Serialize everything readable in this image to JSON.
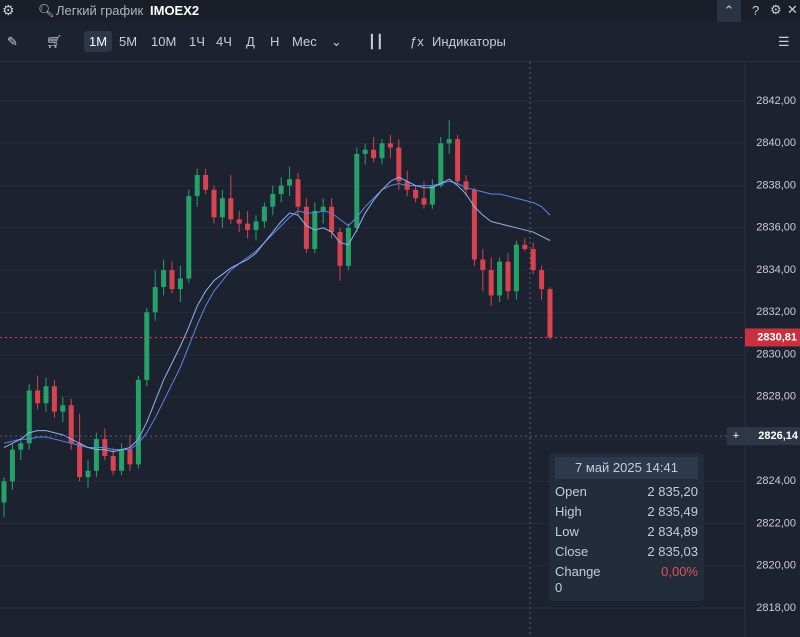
{
  "header": {
    "title": "Легкий график",
    "symbol": "IMOEX2"
  },
  "toolbar": {
    "intervals": [
      "1М",
      "5М",
      "10М",
      "1Ч",
      "4Ч",
      "Д",
      "Н",
      "Мес"
    ],
    "indicators": "Индикаторы"
  },
  "chart_data": {
    "type": "candlestick",
    "up_color": "#26a269",
    "down_color": "#d9434f",
    "open": [
      2823.0,
      2824.0,
      2825.5,
      2825.8,
      2828.3,
      2827.7,
      2828.5,
      2827.3,
      2827.6,
      2825.8,
      2824.2,
      2824.5,
      2826.0,
      2825.2,
      2824.5,
      2825.5,
      2824.8,
      2828.8,
      2832.0,
      2833.2,
      2834.0,
      2833.1,
      2833.6,
      2837.5,
      2838.5,
      2837.8,
      2836.5,
      2837.4,
      2836.4,
      2836.2,
      2835.9,
      2836.3,
      2837.0,
      2837.6,
      2838.0,
      2838.3,
      2837.0,
      2835.0,
      2836.8,
      2837.0,
      2835.8,
      2834.2,
      2836.0,
      2839.5,
      2839.7,
      2839.3,
      2840.0,
      2839.8,
      2838.2,
      2837.8,
      2837.4,
      2837.1,
      2838.0,
      2840.0,
      2840.2,
      2838.2,
      2837.8,
      2834.5,
      2834.0,
      2832.8,
      2834.4,
      2833.0,
      2835.2,
      2835.0,
      2834.0,
      2833.1
    ],
    "high": [
      2824.2,
      2825.8,
      2826.0,
      2828.6,
      2829.0,
      2828.9,
      2828.8,
      2828.0,
      2827.9,
      2827.2,
      2825.0,
      2826.3,
      2826.5,
      2825.6,
      2825.8,
      2826.2,
      2829.0,
      2832.2,
      2834.0,
      2834.5,
      2834.4,
      2834.2,
      2837.8,
      2838.8,
      2838.8,
      2838.0,
      2837.8,
      2838.5,
      2836.8,
      2836.8,
      2836.6,
      2837.2,
      2838.0,
      2838.4,
      2838.9,
      2838.6,
      2837.4,
      2837.2,
      2837.4,
      2837.4,
      2836.0,
      2836.2,
      2839.8,
      2840.0,
      2840.3,
      2840.2,
      2840.4,
      2840.2,
      2838.7,
      2838.0,
      2838.2,
      2838.3,
      2840.3,
      2841.1,
      2840.4,
      2838.5,
      2837.9,
      2835.0,
      2834.6,
      2834.6,
      2834.8,
      2835.4,
      2835.5,
      2835.3,
      2834.2,
      2833.2
    ],
    "low": [
      2822.3,
      2823.6,
      2825.0,
      2825.5,
      2827.4,
      2827.3,
      2827.0,
      2826.8,
      2825.5,
      2824.0,
      2823.7,
      2824.2,
      2825.0,
      2824.3,
      2824.3,
      2824.5,
      2824.6,
      2828.5,
      2831.6,
      2832.8,
      2832.9,
      2832.5,
      2833.4,
      2837.0,
      2837.6,
      2836.2,
      2836.0,
      2836.2,
      2835.8,
      2835.5,
      2835.4,
      2836.0,
      2836.6,
      2837.2,
      2837.5,
      2836.6,
      2834.8,
      2834.8,
      2836.2,
      2835.5,
      2833.5,
      2834.0,
      2835.8,
      2839.0,
      2839.1,
      2839.0,
      2839.3,
      2837.8,
      2837.5,
      2837.2,
      2836.9,
      2836.9,
      2837.9,
      2839.5,
      2838.0,
      2837.5,
      2834.2,
      2833.0,
      2832.3,
      2832.5,
      2832.6,
      2832.6,
      2834.9,
      2833.8,
      2832.6,
      2830.7
    ],
    "close": [
      2824.0,
      2825.5,
      2825.8,
      2828.3,
      2827.7,
      2828.5,
      2827.3,
      2827.6,
      2825.8,
      2824.2,
      2824.5,
      2826.0,
      2825.2,
      2824.5,
      2825.5,
      2824.8,
      2828.8,
      2832.0,
      2833.2,
      2834.0,
      2833.1,
      2833.6,
      2837.5,
      2838.5,
      2837.8,
      2836.5,
      2837.4,
      2836.4,
      2836.2,
      2835.9,
      2836.3,
      2837.0,
      2837.6,
      2838.0,
      2838.3,
      2837.0,
      2835.0,
      2836.8,
      2837.0,
      2835.8,
      2834.2,
      2836.0,
      2839.5,
      2839.7,
      2839.3,
      2840.0,
      2839.8,
      2838.2,
      2837.8,
      2837.4,
      2837.1,
      2838.0,
      2840.0,
      2840.2,
      2838.2,
      2837.8,
      2834.5,
      2834.0,
      2832.8,
      2834.4,
      2833.0,
      2835.2,
      2835.0,
      2834.0,
      2833.1,
      2830.81
    ],
    "series": [
      {
        "color": "#5b86e5",
        "values": [
          2825.8,
          2825.9,
          2826.0,
          2826.0,
          2826.1,
          2826.1,
          2826.0,
          2825.9,
          2825.8,
          2825.7,
          2825.6,
          2825.6,
          2825.6,
          2825.5,
          2825.5,
          2825.5,
          2825.8,
          2826.3,
          2827.0,
          2827.8,
          2828.6,
          2829.4,
          2830.4,
          2831.4,
          2832.3,
          2833.0,
          2833.5,
          2834.0,
          2834.3,
          2834.6,
          2834.9,
          2835.3,
          2835.7,
          2836.1,
          2836.5,
          2836.8,
          2836.7,
          2836.7,
          2836.8,
          2836.7,
          2836.4,
          2836.1,
          2836.5,
          2837.0,
          2837.4,
          2837.8,
          2838.0,
          2838.1,
          2838.0,
          2838.0,
          2838.0,
          2838.0,
          2838.1,
          2838.2,
          2838.1,
          2837.9,
          2837.8,
          2837.7,
          2837.6,
          2837.6,
          2837.5,
          2837.4,
          2837.3,
          2837.2,
          2837.0,
          2836.6
        ]
      },
      {
        "color": "#8fb2f0",
        "values": [
          2825.6,
          2825.8,
          2826.0,
          2826.3,
          2826.4,
          2826.4,
          2826.3,
          2826.2,
          2826.0,
          2825.8,
          2825.6,
          2825.5,
          2825.5,
          2825.4,
          2825.5,
          2825.6,
          2826.0,
          2826.8,
          2827.8,
          2828.8,
          2829.6,
          2830.4,
          2831.3,
          2832.3,
          2833.0,
          2833.5,
          2833.8,
          2834.1,
          2834.3,
          2834.5,
          2834.8,
          2835.3,
          2835.8,
          2836.3,
          2836.7,
          2836.6,
          2836.1,
          2835.9,
          2836.0,
          2835.8,
          2835.3,
          2835.2,
          2835.9,
          2836.7,
          2837.3,
          2837.8,
          2838.2,
          2838.4,
          2838.2,
          2838.0,
          2837.9,
          2837.9,
          2838.1,
          2838.3,
          2838.0,
          2837.6,
          2837.0,
          2836.6,
          2836.3,
          2836.2,
          2836.1,
          2836.0,
          2835.9,
          2835.8,
          2835.6,
          2835.4
        ]
      }
    ],
    "ylim": [
      2816.63,
      2843.85
    ],
    "yticks": [
      {
        "value": 2818,
        "label": "2818,00"
      },
      {
        "value": 2820,
        "label": "2820,00"
      },
      {
        "value": 2822,
        "label": "2822,00"
      },
      {
        "value": 2824,
        "label": "2824,00"
      },
      {
        "value": 2826,
        "label": "2826,00"
      },
      {
        "value": 2828,
        "label": "2828,00"
      },
      {
        "value": 2830,
        "label": "2830,00"
      },
      {
        "value": 2832,
        "label": "2832,00"
      },
      {
        "value": 2834,
        "label": "2834,00"
      },
      {
        "value": 2836,
        "label": "2836,00"
      },
      {
        "value": 2838,
        "label": "2838,00"
      },
      {
        "value": 2840,
        "label": "2840,00"
      },
      {
        "value": 2842,
        "label": "2842,00"
      }
    ],
    "last_price": {
      "value": 2830.81,
      "label": "2830,81"
    },
    "crosshair": {
      "value": 2826.14,
      "label": "2826,14"
    }
  },
  "tooltip": {
    "date": "7 май 2025 14:41",
    "rows": [
      {
        "label": "Open",
        "value": "2 835,20"
      },
      {
        "label": "High",
        "value": "2 835,49"
      },
      {
        "label": "Low",
        "value": "2 834,89"
      },
      {
        "label": "Close",
        "value": "2 835,03"
      }
    ],
    "change": {
      "label": "Change",
      "value": "0,00%",
      "extra": "0"
    }
  }
}
